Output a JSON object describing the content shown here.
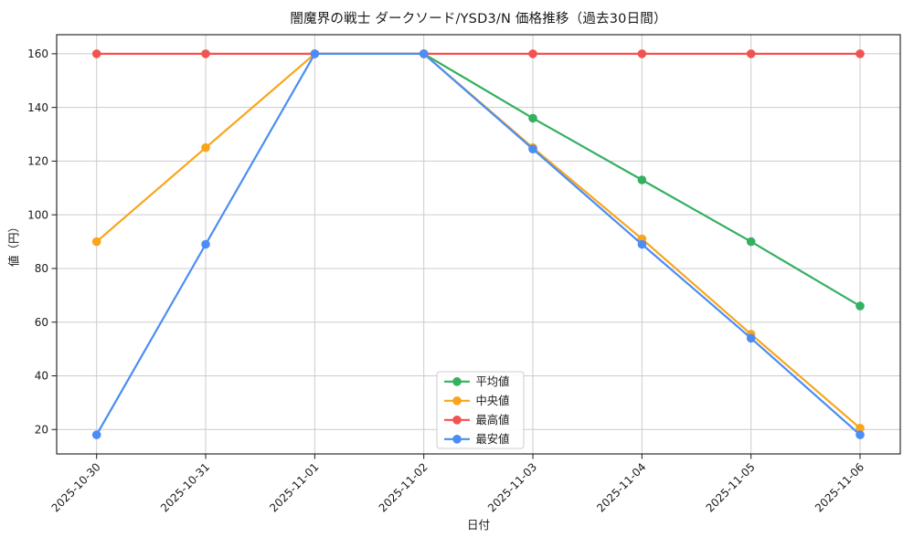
{
  "figure": {
    "background": "#ffffff",
    "grid_color": "#cccccc",
    "axis_color": "#1a1a1a",
    "text_color": "#191919",
    "legend_border_color": "#cccccc",
    "legend_background": "#ffffff"
  },
  "chart_data": {
    "type": "line",
    "title": "闇魔界の戦士 ダークソード/YSD3/N 価格推移（過去30日間）",
    "xlabel": "日付",
    "ylabel": "値（円）",
    "categories": [
      "2025-10-30",
      "2025-10-31",
      "2025-11-01",
      "2025-11-02",
      "2025-11-03",
      "2025-11-04",
      "2025-11-05",
      "2025-11-06"
    ],
    "series": [
      {
        "key": "average",
        "name": "平均値",
        "color": "#34b060",
        "values": [
          null,
          null,
          null,
          160,
          136,
          113,
          90,
          66
        ]
      },
      {
        "key": "median",
        "name": "中央値",
        "color": "#f9a51a",
        "values": [
          90,
          125,
          160,
          160,
          125,
          91,
          55.5,
          20.5
        ]
      },
      {
        "key": "highest",
        "name": "最高値",
        "color": "#f25350",
        "values": [
          160,
          160,
          160,
          160,
          160,
          160,
          160,
          160
        ]
      },
      {
        "key": "lowest",
        "name": "最安値",
        "color": "#4b8df6",
        "values": [
          18,
          89,
          160,
          160,
          124.5,
          89,
          54,
          18
        ]
      }
    ],
    "y_ticks": [
      20,
      40,
      60,
      80,
      100,
      120,
      140,
      160
    ],
    "ylim": [
      10.9,
      167.1
    ],
    "grid": true,
    "legend_position": "lower-center",
    "legend_entries": [
      "平均値",
      "中央値",
      "最高値",
      "最安値"
    ],
    "marker": "circle",
    "x_tick_rotation_deg": 45
  }
}
